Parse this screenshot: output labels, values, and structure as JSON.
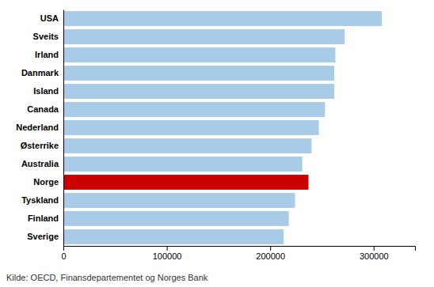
{
  "chart_data": {
    "type": "bar",
    "orientation": "horizontal",
    "categories": [
      "Sverige",
      "Finland",
      "Tyskland",
      "Norge",
      "Australia",
      "Østerrike",
      "Nederland",
      "Canada",
      "Island",
      "Danmark",
      "Irland",
      "Sveits",
      "USA"
    ],
    "values": [
      213000,
      218000,
      224000,
      237000,
      231000,
      240000,
      247000,
      253000,
      262000,
      262000,
      263000,
      272000,
      308000
    ],
    "colors": [
      "#a8cce8",
      "#a8cce8",
      "#a8cce8",
      "#cc0000",
      "#a8cce8",
      "#a8cce8",
      "#a8cce8",
      "#a8cce8",
      "#a8cce8",
      "#a8cce8",
      "#a8cce8",
      "#a8cce8",
      "#a8cce8"
    ],
    "xlim": [
      0,
      340000
    ],
    "xticks": [
      0,
      100000,
      200000,
      300000
    ],
    "annotations": [
      "Kilde: OECD, Finansdepartementet og Norges Bank"
    ],
    "grid": false
  }
}
